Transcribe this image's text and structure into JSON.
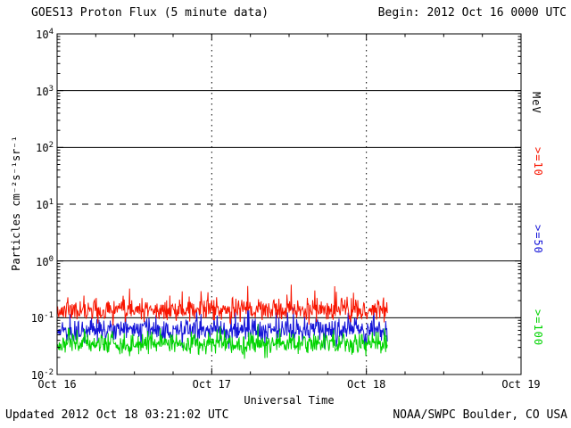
{
  "header": {
    "title": "GOES13 Proton Flux (5 minute data)",
    "begin_label": "Begin: 2012 Oct 16 0000 UTC"
  },
  "axis": {
    "y_label_display": "Particles cm⁻²s⁻¹sr⁻¹",
    "x_label": "Universal Time",
    "right_unit": "MeV"
  },
  "footer": {
    "updated": "Updated 2012 Oct 18 03:21:02 UTC",
    "source": "NOAA/SWPC Boulder, CO USA"
  },
  "chart_data": {
    "type": "line",
    "title": "GOES13 Proton Flux (5 minute data)",
    "xlabel": "Universal Time",
    "ylabel": "Particles cm-2 s-1 sr-1",
    "begin": "2012 Oct 16 0000 UTC",
    "end_of_data": "2012 Oct 18 03:21 UTC",
    "cadence_minutes": 5,
    "x_axis": {
      "ticks": [
        "Oct 16",
        "Oct 17",
        "Oct 18",
        "Oct 19"
      ],
      "tick_positions_days": [
        0,
        1,
        2,
        3
      ],
      "range_days": [
        0,
        3
      ],
      "minor_tick_hours": 6
    },
    "y_axis": {
      "scale": "log",
      "tick_exponents": [
        4,
        3,
        2,
        1,
        0,
        -1,
        -2
      ],
      "range_exponents": [
        -2,
        4
      ],
      "gridline_exponents_solid": [
        3,
        2,
        0,
        -1
      ],
      "gridline_exponent_dashed": 1
    },
    "series": [
      {
        "name": ">=10 MeV",
        "short_label": ">=10",
        "color": "#f81500",
        "approx_mean_flux": 0.13,
        "approx_min_flux": 0.07,
        "approx_max_flux": 0.42,
        "log10_mean": -0.88,
        "log10_std": 0.1,
        "spike_prob": 0.05,
        "spike_amp": 0.42,
        "clip_log10": [
          -1.15,
          -0.38
        ],
        "seed": 11
      },
      {
        "name": ">=50 MeV",
        "short_label": ">=50",
        "color": "#1414d8",
        "approx_mean_flux": 0.06,
        "approx_min_flux": 0.03,
        "approx_max_flux": 0.15,
        "log10_mean": -1.22,
        "log10_std": 0.1,
        "spike_prob": 0.04,
        "spike_amp": 0.34,
        "clip_log10": [
          -1.55,
          -0.8
        ],
        "seed": 22
      },
      {
        "name": ">=100 MeV",
        "short_label": ">=100",
        "color": "#00d400",
        "approx_mean_flux": 0.035,
        "approx_min_flux": 0.02,
        "approx_max_flux": 0.08,
        "log10_mean": -1.46,
        "log10_std": 0.09,
        "spike_prob": 0.03,
        "spike_amp": 0.28,
        "clip_log10": [
          -1.74,
          -1.08
        ],
        "seed": 33
      }
    ],
    "data_end_day_fraction": 2.14,
    "points_per_day": 288,
    "legend_position": "right-outside",
    "grid": "decade lines solid, 10^1 dashed threshold, day boundaries dotted"
  }
}
